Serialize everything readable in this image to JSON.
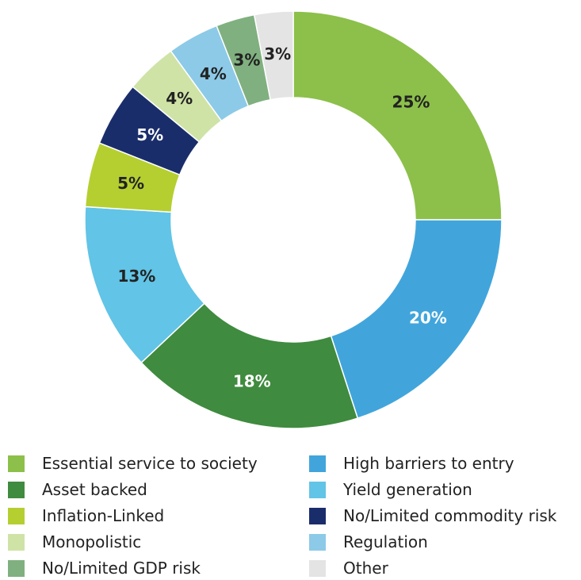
{
  "chart_data": {
    "type": "pie",
    "donut": true,
    "categories": [
      "Essential service to society",
      "High barriers to entry",
      "Asset backed",
      "Yield generation",
      "Inflation-Linked",
      "No/Limited commodity risk",
      "Monopolistic",
      "Regulation",
      "No/Limited GDP risk",
      "Other"
    ],
    "values": [
      25,
      20,
      18,
      13,
      5,
      5,
      4,
      4,
      3,
      3
    ],
    "labels": [
      "25%",
      "20%",
      "18%",
      "13%",
      "5%",
      "5%",
      "4%",
      "4%",
      "3%",
      "3%"
    ],
    "colors": [
      "#8cc04a",
      "#41a5dc",
      "#3f8b3f",
      "#62c4e6",
      "#b5cf31",
      "#1a2d6b",
      "#cfe3a7",
      "#8ccae8",
      "#80b07f",
      "#e4e4e4"
    ],
    "label_colors": [
      "#222222",
      "#ffffff",
      "#ffffff",
      "#222222",
      "#222222",
      "#ffffff",
      "#222222",
      "#222222",
      "#222222",
      "#222222"
    ],
    "start_angle": "12 o'clock",
    "direction": "clockwise",
    "legend_position": "bottom, two columns"
  }
}
